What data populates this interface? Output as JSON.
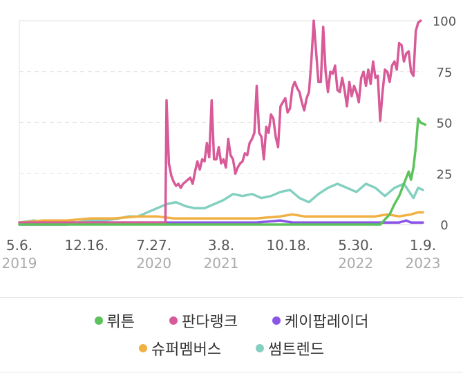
{
  "chart_data": {
    "type": "line",
    "ylim": [
      0,
      100
    ],
    "y_ticks": [
      "0",
      "25",
      "50",
      "75",
      "100"
    ],
    "x_ticks": [
      {
        "date": "5.6.",
        "year": "2019"
      },
      {
        "date": "12.16.",
        "year": ""
      },
      {
        "date": "7.27.",
        "year": "2020"
      },
      {
        "date": "3.8.",
        "year": "2021"
      },
      {
        "date": "10.18.",
        "year": ""
      },
      {
        "date": "5.30.",
        "year": "2022"
      },
      {
        "date": "1.9.",
        "year": "2023"
      }
    ],
    "grid": true,
    "legend_position": "bottom",
    "series": [
      {
        "name": "뤼튼",
        "color": "#5cc35c",
        "values": [
          {
            "x": 0,
            "y": 0
          },
          {
            "x": 152,
            "y": 0
          },
          {
            "x": 156,
            "y": 5
          },
          {
            "x": 158,
            "y": 10
          },
          {
            "x": 160,
            "y": 14
          },
          {
            "x": 162,
            "y": 20
          },
          {
            "x": 164,
            "y": 26
          },
          {
            "x": 165,
            "y": 22
          },
          {
            "x": 166,
            "y": 28
          },
          {
            "x": 167,
            "y": 38
          },
          {
            "x": 168,
            "y": 52
          },
          {
            "x": 169,
            "y": 50
          },
          {
            "x": 171,
            "y": 49
          }
        ]
      },
      {
        "name": "판다랭크",
        "color": "#d85a98",
        "values": [
          {
            "x": 0,
            "y": 1
          },
          {
            "x": 20,
            "y": 1
          },
          {
            "x": 40,
            "y": 1
          },
          {
            "x": 61,
            "y": 1
          },
          {
            "x": 61.5,
            "y": 0
          },
          {
            "x": 62,
            "y": 61
          },
          {
            "x": 63,
            "y": 30
          },
          {
            "x": 64,
            "y": 24
          },
          {
            "x": 65,
            "y": 21
          },
          {
            "x": 66,
            "y": 19
          },
          {
            "x": 67,
            "y": 20
          },
          {
            "x": 68,
            "y": 18
          },
          {
            "x": 69,
            "y": 20
          },
          {
            "x": 70,
            "y": 21
          },
          {
            "x": 71,
            "y": 22
          },
          {
            "x": 72,
            "y": 23
          },
          {
            "x": 73,
            "y": 20
          },
          {
            "x": 74,
            "y": 26
          },
          {
            "x": 75,
            "y": 31
          },
          {
            "x": 76,
            "y": 27
          },
          {
            "x": 77,
            "y": 32
          },
          {
            "x": 78,
            "y": 31
          },
          {
            "x": 79,
            "y": 40
          },
          {
            "x": 80,
            "y": 33
          },
          {
            "x": 81,
            "y": 61
          },
          {
            "x": 82,
            "y": 32
          },
          {
            "x": 83,
            "y": 32
          },
          {
            "x": 84,
            "y": 38
          },
          {
            "x": 85,
            "y": 30
          },
          {
            "x": 86,
            "y": 32
          },
          {
            "x": 87,
            "y": 28
          },
          {
            "x": 88,
            "y": 42
          },
          {
            "x": 89,
            "y": 34
          },
          {
            "x": 90,
            "y": 32
          },
          {
            "x": 91,
            "y": 25
          },
          {
            "x": 92,
            "y": 28
          },
          {
            "x": 93,
            "y": 30
          },
          {
            "x": 94,
            "y": 31
          },
          {
            "x": 95,
            "y": 35
          },
          {
            "x": 96,
            "y": 34
          },
          {
            "x": 97,
            "y": 40
          },
          {
            "x": 98,
            "y": 42
          },
          {
            "x": 99,
            "y": 45
          },
          {
            "x": 100,
            "y": 68
          },
          {
            "x": 101,
            "y": 45
          },
          {
            "x": 102,
            "y": 43
          },
          {
            "x": 103,
            "y": 32
          },
          {
            "x": 104,
            "y": 48
          },
          {
            "x": 105,
            "y": 45
          },
          {
            "x": 106,
            "y": 54
          },
          {
            "x": 107,
            "y": 52
          },
          {
            "x": 108,
            "y": 43
          },
          {
            "x": 109,
            "y": 38
          },
          {
            "x": 110,
            "y": 58
          },
          {
            "x": 111,
            "y": 60
          },
          {
            "x": 112,
            "y": 62
          },
          {
            "x": 113,
            "y": 55
          },
          {
            "x": 114,
            "y": 57
          },
          {
            "x": 115,
            "y": 67
          },
          {
            "x": 116,
            "y": 70
          },
          {
            "x": 117,
            "y": 67
          },
          {
            "x": 118,
            "y": 65
          },
          {
            "x": 119,
            "y": 60
          },
          {
            "x": 120,
            "y": 56
          },
          {
            "x": 121,
            "y": 62
          },
          {
            "x": 122,
            "y": 65
          },
          {
            "x": 123,
            "y": 80
          },
          {
            "x": 124,
            "y": 100
          },
          {
            "x": 125,
            "y": 85
          },
          {
            "x": 126,
            "y": 70
          },
          {
            "x": 127,
            "y": 70
          },
          {
            "x": 128,
            "y": 97
          },
          {
            "x": 129,
            "y": 75
          },
          {
            "x": 130,
            "y": 65
          },
          {
            "x": 131,
            "y": 75
          },
          {
            "x": 132,
            "y": 74
          },
          {
            "x": 133,
            "y": 78
          },
          {
            "x": 134,
            "y": 66
          },
          {
            "x": 135,
            "y": 65
          },
          {
            "x": 136,
            "y": 72
          },
          {
            "x": 137,
            "y": 66
          },
          {
            "x": 138,
            "y": 58
          },
          {
            "x": 139,
            "y": 70
          },
          {
            "x": 140,
            "y": 63
          },
          {
            "x": 141,
            "y": 68
          },
          {
            "x": 142,
            "y": 65
          },
          {
            "x": 143,
            "y": 60
          },
          {
            "x": 144,
            "y": 72
          },
          {
            "x": 145,
            "y": 75
          },
          {
            "x": 146,
            "y": 68
          },
          {
            "x": 147,
            "y": 76
          },
          {
            "x": 148,
            "y": 69
          },
          {
            "x": 149,
            "y": 80
          },
          {
            "x": 150,
            "y": 72
          },
          {
            "x": 151,
            "y": 73
          },
          {
            "x": 152,
            "y": 51
          },
          {
            "x": 153,
            "y": 65
          },
          {
            "x": 154,
            "y": 76
          },
          {
            "x": 155,
            "y": 75
          },
          {
            "x": 156,
            "y": 70
          },
          {
            "x": 157,
            "y": 78
          },
          {
            "x": 158,
            "y": 80
          },
          {
            "x": 159,
            "y": 76
          },
          {
            "x": 160,
            "y": 89
          },
          {
            "x": 161,
            "y": 88
          },
          {
            "x": 162,
            "y": 80
          },
          {
            "x": 163,
            "y": 84
          },
          {
            "x": 164,
            "y": 85
          },
          {
            "x": 165,
            "y": 75
          },
          {
            "x": 166,
            "y": 73
          },
          {
            "x": 167,
            "y": 95
          },
          {
            "x": 168,
            "y": 99
          },
          {
            "x": 169,
            "y": 100
          }
        ]
      },
      {
        "name": "케이팝레이더",
        "color": "#8b55e8",
        "values": [
          {
            "x": 0,
            "y": 0
          },
          {
            "x": 10,
            "y": 0
          },
          {
            "x": 20,
            "y": 0
          },
          {
            "x": 30,
            "y": 1
          },
          {
            "x": 40,
            "y": 1
          },
          {
            "x": 50,
            "y": 1
          },
          {
            "x": 60,
            "y": 1
          },
          {
            "x": 80,
            "y": 1
          },
          {
            "x": 100,
            "y": 1
          },
          {
            "x": 110,
            "y": 2
          },
          {
            "x": 115,
            "y": 1
          },
          {
            "x": 120,
            "y": 1
          },
          {
            "x": 140,
            "y": 1
          },
          {
            "x": 160,
            "y": 1
          },
          {
            "x": 163,
            "y": 2
          },
          {
            "x": 165,
            "y": 1
          },
          {
            "x": 170,
            "y": 1
          }
        ]
      },
      {
        "name": "슈퍼멤버스",
        "color": "#f0b042",
        "values": [
          {
            "x": 0,
            "y": 1
          },
          {
            "x": 10,
            "y": 2
          },
          {
            "x": 20,
            "y": 2
          },
          {
            "x": 30,
            "y": 3
          },
          {
            "x": 40,
            "y": 3
          },
          {
            "x": 50,
            "y": 4
          },
          {
            "x": 58,
            "y": 4
          },
          {
            "x": 65,
            "y": 3
          },
          {
            "x": 80,
            "y": 3
          },
          {
            "x": 100,
            "y": 3
          },
          {
            "x": 110,
            "y": 4
          },
          {
            "x": 115,
            "y": 5
          },
          {
            "x": 120,
            "y": 4
          },
          {
            "x": 130,
            "y": 4
          },
          {
            "x": 140,
            "y": 4
          },
          {
            "x": 150,
            "y": 4
          },
          {
            "x": 155,
            "y": 5
          },
          {
            "x": 160,
            "y": 4
          },
          {
            "x": 165,
            "y": 5
          },
          {
            "x": 168,
            "y": 6
          },
          {
            "x": 170,
            "y": 6
          }
        ]
      },
      {
        "name": "썸트렌드",
        "color": "#83d0c1",
        "values": [
          {
            "x": 0,
            "y": 1
          },
          {
            "x": 6,
            "y": 2
          },
          {
            "x": 12,
            "y": 1
          },
          {
            "x": 18,
            "y": 2
          },
          {
            "x": 24,
            "y": 1
          },
          {
            "x": 30,
            "y": 2
          },
          {
            "x": 36,
            "y": 2
          },
          {
            "x": 42,
            "y": 3
          },
          {
            "x": 46,
            "y": 4
          },
          {
            "x": 50,
            "y": 4
          },
          {
            "x": 54,
            "y": 6
          },
          {
            "x": 58,
            "y": 8
          },
          {
            "x": 62,
            "y": 10
          },
          {
            "x": 66,
            "y": 11
          },
          {
            "x": 70,
            "y": 9
          },
          {
            "x": 74,
            "y": 8
          },
          {
            "x": 78,
            "y": 8
          },
          {
            "x": 82,
            "y": 10
          },
          {
            "x": 86,
            "y": 12
          },
          {
            "x": 90,
            "y": 15
          },
          {
            "x": 94,
            "y": 14
          },
          {
            "x": 98,
            "y": 15
          },
          {
            "x": 102,
            "y": 13
          },
          {
            "x": 106,
            "y": 14
          },
          {
            "x": 110,
            "y": 16
          },
          {
            "x": 114,
            "y": 17
          },
          {
            "x": 118,
            "y": 13
          },
          {
            "x": 122,
            "y": 11
          },
          {
            "x": 126,
            "y": 15
          },
          {
            "x": 130,
            "y": 18
          },
          {
            "x": 134,
            "y": 20
          },
          {
            "x": 138,
            "y": 18
          },
          {
            "x": 142,
            "y": 16
          },
          {
            "x": 146,
            "y": 20
          },
          {
            "x": 150,
            "y": 18
          },
          {
            "x": 154,
            "y": 14
          },
          {
            "x": 158,
            "y": 18
          },
          {
            "x": 162,
            "y": 20
          },
          {
            "x": 166,
            "y": 13
          },
          {
            "x": 168,
            "y": 18
          },
          {
            "x": 170,
            "y": 17
          }
        ]
      }
    ]
  },
  "legend": {
    "rows": [
      [
        {
          "name": "뤼튼",
          "color": "#5cc35c"
        },
        {
          "name": "판다랭크",
          "color": "#d85a98"
        },
        {
          "name": "케이팝레이더",
          "color": "#8b55e8"
        }
      ],
      [
        {
          "name": "슈퍼멤버스",
          "color": "#f0b042"
        },
        {
          "name": "썸트렌드",
          "color": "#83d0c1"
        }
      ]
    ]
  }
}
